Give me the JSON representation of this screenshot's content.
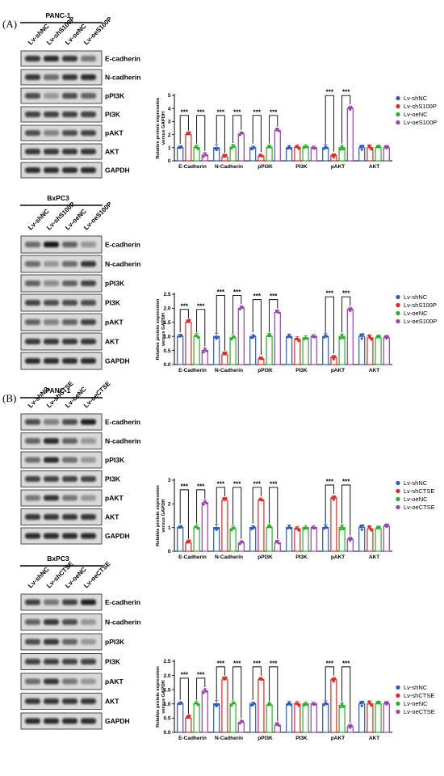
{
  "sections": [
    {
      "label": "(A)"
    },
    {
      "label": "(B)"
    }
  ],
  "panels": [
    {
      "cell_line": "PANC-1",
      "lanes": [
        "Lv-shNC",
        "Lv-shS100P",
        "Lv-oeNC",
        "Lv-oeS100P"
      ],
      "bands": [
        "E-cadherin",
        "N-cadherin",
        "pPI3K",
        "PI3K",
        "pAKT",
        "AKT",
        "GAPDH"
      ]
    },
    {
      "cell_line": "BxPC3",
      "lanes": [
        "Lv-shNC",
        "Lv-shS100P",
        "Lv-oeNC",
        "Lv-oeS100P"
      ],
      "bands": [
        "E-cadherin",
        "N-cadherin",
        "pPI3K",
        "PI3K",
        "pAKT",
        "AKT",
        "GAPDH"
      ]
    },
    {
      "cell_line": "PANC-1",
      "lanes": [
        "Lv-shNC",
        "Lv-shCTSE",
        "Lv-oeNC",
        "Lv-oeCTSE"
      ],
      "bands": [
        "E-cadherin",
        "N-cadherin",
        "pPI3K",
        "PI3K",
        "pAKT",
        "AKT",
        "GAPDH"
      ]
    },
    {
      "cell_line": "BxPC3",
      "lanes": [
        "Lv-shNC",
        "Lv-shCTSE",
        "Lv-oeNC",
        "Lv-oeCTSE"
      ],
      "bands": [
        "E-cadherin",
        "N-cadherin",
        "pPI3K",
        "PI3K",
        "pAKT",
        "AKT",
        "GAPDH"
      ]
    }
  ],
  "colors": {
    "series": [
      "#2b59c3",
      "#e8231f",
      "#1fb51f",
      "#9b3fb5"
    ]
  },
  "significance": "***",
  "chart_data": [
    {
      "type": "bar",
      "categories": [
        "E-Cadherin",
        "N-Cadherin",
        "pPI3K",
        "PI3K",
        "pAKT",
        "AKT"
      ],
      "ylabel": [
        "Relative protein expression",
        "versus GAPDH"
      ],
      "ylim": [
        0,
        5
      ],
      "yticks": [
        0,
        1,
        2,
        3,
        4,
        5
      ],
      "series": [
        {
          "name": "Lv-shNC",
          "values": [
            1.0,
            1.0,
            1.0,
            1.0,
            1.0,
            1.0
          ]
        },
        {
          "name": "Lv-shS100P",
          "values": [
            2.0,
            0.3,
            0.35,
            1.05,
            0.4,
            1.0
          ]
        },
        {
          "name": "Lv-oeNC",
          "values": [
            1.0,
            1.05,
            1.0,
            1.1,
            1.0,
            1.0
          ]
        },
        {
          "name": "Lv-oeS100P",
          "values": [
            0.45,
            2.05,
            2.3,
            1.0,
            4.0,
            1.0
          ]
        }
      ],
      "significant_pairs": [
        "E-Cadherin",
        "N-Cadherin",
        "pPI3K",
        "pAKT"
      ]
    },
    {
      "type": "bar",
      "categories": [
        "E-Cadherin",
        "N-Cadherin",
        "pPI3K",
        "PI3K",
        "pAKT",
        "AKT"
      ],
      "ylabel": [
        "Relative protein expression",
        "versus GAPDH"
      ],
      "ylim": [
        0,
        2.5
      ],
      "yticks": [
        0.0,
        0.5,
        1.0,
        1.5,
        2.0,
        2.5
      ],
      "series": [
        {
          "name": "Lv-shNC",
          "values": [
            1.0,
            1.0,
            1.0,
            1.0,
            1.0,
            1.0
          ]
        },
        {
          "name": "Lv-shS100P",
          "values": [
            1.5,
            0.35,
            0.2,
            0.9,
            0.25,
            0.95
          ]
        },
        {
          "name": "Lv-oeNC",
          "values": [
            1.0,
            0.95,
            1.0,
            0.95,
            1.0,
            0.95
          ]
        },
        {
          "name": "Lv-oeS100P",
          "values": [
            0.5,
            2.0,
            1.85,
            1.0,
            1.95,
            0.95
          ]
        }
      ],
      "significant_pairs": [
        "E-Cadherin",
        "N-Cadherin",
        "pPI3K",
        "pAKT"
      ]
    },
    {
      "type": "bar",
      "categories": [
        "E-Cadherin",
        "N-Cadherin",
        "pPI3K",
        "PI3K",
        "pAKT",
        "AKT"
      ],
      "ylabel": [
        "Relative protein expression",
        "versus GAPDH"
      ],
      "ylim": [
        0,
        3
      ],
      "yticks": [
        0,
        1,
        2,
        3
      ],
      "series": [
        {
          "name": "Lv-shNC",
          "values": [
            1.0,
            1.0,
            1.0,
            1.0,
            1.0,
            1.0
          ]
        },
        {
          "name": "Lv-shCTSE",
          "values": [
            0.35,
            2.15,
            2.15,
            0.95,
            2.25,
            0.95
          ]
        },
        {
          "name": "Lv-oeNC",
          "values": [
            1.0,
            0.95,
            1.0,
            1.0,
            1.0,
            0.95
          ]
        },
        {
          "name": "Lv-oeCTSE",
          "values": [
            2.05,
            0.35,
            0.35,
            1.0,
            0.5,
            1.05
          ]
        }
      ],
      "significant_pairs": [
        "E-Cadherin",
        "N-Cadherin",
        "pPI3K",
        "pAKT"
      ]
    },
    {
      "type": "bar",
      "categories": [
        "E-Cadherin",
        "N-Cadherin",
        "pPI3K",
        "PI3K",
        "pAKT",
        "AKT"
      ],
      "ylabel": [
        "Relative protein expression",
        "versus GAPDH"
      ],
      "ylim": [
        0,
        2.5
      ],
      "yticks": [
        0.0,
        0.5,
        1.0,
        1.5,
        2.0,
        2.5
      ],
      "series": [
        {
          "name": "Lv-shNC",
          "values": [
            1.0,
            1.0,
            1.0,
            1.0,
            1.0,
            1.0
          ]
        },
        {
          "name": "Lv-shCTSE",
          "values": [
            0.5,
            1.85,
            1.85,
            1.0,
            1.85,
            1.0
          ]
        },
        {
          "name": "Lv-oeNC",
          "values": [
            1.0,
            1.0,
            0.95,
            1.0,
            0.95,
            1.0
          ]
        },
        {
          "name": "Lv-oeCTSE",
          "values": [
            1.45,
            0.35,
            0.25,
            1.0,
            0.2,
            1.0
          ]
        }
      ],
      "significant_pairs": [
        "E-Cadherin",
        "N-Cadherin",
        "pPI3K",
        "pAKT"
      ]
    }
  ]
}
